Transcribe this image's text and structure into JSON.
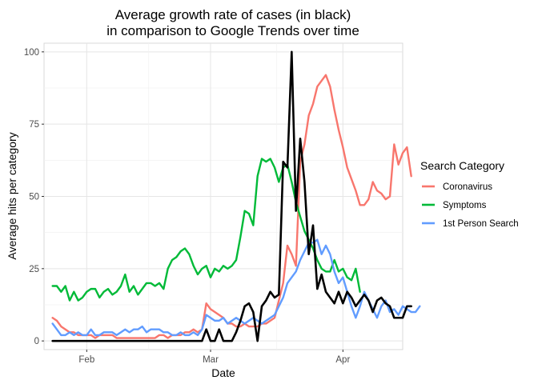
{
  "chart_data": {
    "type": "line",
    "title_line1": "Average growth rate of cases (in black)",
    "title_line2": "in comparison to Google Trends over time",
    "xlabel": "Date",
    "ylabel": "Average hits per category",
    "x_start": "2020-01-24",
    "x_end": "2020-04-13",
    "xlim": [
      "2020-01-22",
      "2020-04-15"
    ],
    "ylim": [
      -3,
      103
    ],
    "y_ticks": [
      0,
      25,
      50,
      75,
      100
    ],
    "x_ticks": [
      {
        "date": "2020-02-01",
        "label": "Feb"
      },
      {
        "date": "2020-03-01",
        "label": "Mar"
      },
      {
        "date": "2020-04-01",
        "label": "Apr"
      }
    ],
    "grid": true,
    "legend": {
      "title": "Search Category",
      "position": "right"
    },
    "series": [
      {
        "name": "Coronavirus",
        "color": "#F8766D",
        "x_start": "2020-01-24",
        "values": [
          8,
          7,
          5,
          4,
          3,
          3,
          2,
          2,
          2,
          2,
          1,
          2,
          2,
          2,
          2,
          1,
          1,
          1,
          1,
          1,
          1,
          1,
          1,
          1,
          1,
          2,
          2,
          1,
          2,
          2,
          2,
          3,
          3,
          4,
          3,
          4,
          13,
          11,
          10,
          9,
          8,
          6,
          6,
          5,
          5,
          6,
          5,
          5,
          5,
          6,
          6,
          7,
          8,
          14,
          20,
          33,
          30,
          26,
          62,
          68,
          78,
          82,
          88,
          90,
          92,
          88,
          80,
          73,
          67,
          60,
          56,
          52,
          47,
          47,
          49,
          55,
          52,
          51,
          49,
          50,
          68,
          61,
          65,
          67,
          57
        ]
      },
      {
        "name": "Symptoms",
        "color": "#00BA38",
        "x_start": "2020-01-24",
        "values": [
          19,
          19,
          17,
          19,
          14,
          17,
          14,
          15,
          17,
          18,
          18,
          15,
          17,
          18,
          16,
          17,
          19,
          23,
          17,
          19,
          16,
          18,
          20,
          20,
          19,
          20,
          18,
          25,
          28,
          29,
          31,
          32,
          30,
          26,
          23,
          25,
          26,
          22,
          25,
          24,
          26,
          25,
          26,
          28,
          36,
          45,
          44,
          40,
          57,
          63,
          62,
          63,
          60,
          55,
          60,
          61,
          55,
          48,
          43,
          38,
          35,
          32,
          28,
          25,
          24,
          24,
          28,
          24,
          25,
          22,
          21,
          25,
          17
        ]
      },
      {
        "name": "1st Person Search",
        "color": "#619CFF",
        "x_start": "2020-01-24",
        "values": [
          6,
          4,
          2,
          2,
          3,
          2,
          3,
          2,
          2,
          4,
          2,
          2,
          3,
          3,
          3,
          2,
          3,
          4,
          3,
          4,
          4,
          5,
          3,
          4,
          4,
          4,
          3,
          3,
          2,
          2,
          3,
          2,
          2,
          3,
          2,
          4,
          9,
          8,
          7,
          7,
          8,
          6,
          7,
          8,
          7,
          6,
          7,
          8,
          7,
          6,
          7,
          8,
          9,
          12,
          15,
          20,
          22,
          24,
          28,
          31,
          34,
          34,
          35,
          30,
          33,
          30,
          24,
          20,
          22,
          17,
          12,
          8,
          12,
          17,
          14,
          11,
          8,
          12,
          14,
          10,
          11,
          9,
          12,
          11,
          10,
          10,
          12
        ]
      },
      {
        "name": "Growth rate of cases",
        "color": "#000000",
        "x_start": "2020-01-24",
        "values": [
          0,
          0,
          0,
          0,
          0,
          0,
          0,
          0,
          0,
          0,
          0,
          0,
          0,
          0,
          0,
          0,
          0,
          0,
          0,
          0,
          0,
          0,
          0,
          0,
          0,
          0,
          0,
          0,
          0,
          0,
          0,
          0,
          0,
          0,
          0,
          0,
          4,
          0,
          0,
          4,
          0,
          0,
          0,
          3,
          7,
          12,
          13,
          10,
          0,
          12,
          14,
          17,
          15,
          16,
          62,
          60,
          100,
          45,
          70,
          55,
          30,
          40,
          18,
          23,
          17,
          15,
          13,
          17,
          13,
          17,
          15,
          12,
          14,
          16,
          14,
          10,
          14,
          15,
          13,
          12,
          8,
          8,
          8,
          12,
          12
        ]
      }
    ]
  }
}
